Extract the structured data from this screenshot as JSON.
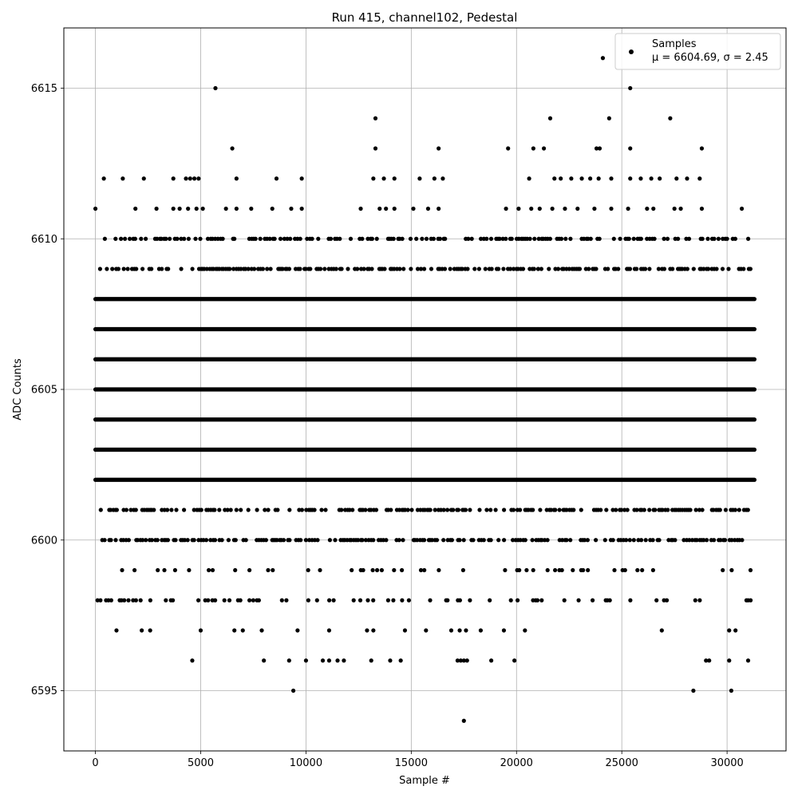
{
  "chart_data": {
    "type": "scatter",
    "title": "Run 415, channel102, Pedestal",
    "xlabel": "Sample #",
    "ylabel": "ADC Counts",
    "xlim": [
      -1500,
      32800
    ],
    "ylim": [
      6593,
      6617
    ],
    "xticks": [
      0,
      5000,
      10000,
      15000,
      20000,
      25000,
      30000
    ],
    "xtick_labels": [
      "0",
      "5000",
      "10000",
      "15000",
      "20000",
      "25000",
      "30000"
    ],
    "yticks": [
      6595,
      6600,
      6605,
      6610,
      6615
    ],
    "ytick_labels": [
      "6595",
      "6600",
      "6605",
      "6610",
      "6615"
    ],
    "grid": true,
    "legend_position": "top-right",
    "series": [
      {
        "name": "Samples",
        "legend_stats": "μ = 6604.69, σ = 2.45",
        "color": "#000000",
        "marker": "circle",
        "n_samples": 31300,
        "dense_bands": [
          {
            "y": 6608,
            "x_range": [
              0,
              31300
            ]
          },
          {
            "y": 6607,
            "x_range": [
              0,
              31300
            ]
          },
          {
            "y": 6606,
            "x_range": [
              0,
              31300
            ]
          },
          {
            "y": 6605,
            "x_range": [
              0,
              31300
            ]
          },
          {
            "y": 6604,
            "x_range": [
              0,
              31300
            ]
          },
          {
            "y": 6603,
            "x_range": [
              0,
              31300
            ]
          },
          {
            "y": 6602,
            "x_range": [
              0,
              31300
            ]
          }
        ],
        "sparse_bands": [
          {
            "y": 6610,
            "x_range": [
              100,
              31200
            ],
            "density": 0.55
          },
          {
            "y": 6609,
            "x_range": [
              100,
              31200
            ],
            "density": 0.6
          },
          {
            "y": 6601,
            "x_range": [
              100,
              31200
            ],
            "density": 0.6
          },
          {
            "y": 6600,
            "x_range": [
              100,
              31200
            ],
            "density": 0.6
          },
          {
            "y": 6599,
            "x_range": [
              100,
              31200
            ],
            "density": 0.2
          },
          {
            "y": 6598,
            "x_range": [
              100,
              31200
            ],
            "density": 0.2
          }
        ],
        "points": [
          {
            "x": 0,
            "y": 6611
          },
          {
            "x": 1900,
            "y": 6611
          },
          {
            "x": 2900,
            "y": 6611
          },
          {
            "x": 3700,
            "y": 6611
          },
          {
            "x": 4000,
            "y": 6611
          },
          {
            "x": 4400,
            "y": 6611
          },
          {
            "x": 4800,
            "y": 6611
          },
          {
            "x": 5100,
            "y": 6611
          },
          {
            "x": 6200,
            "y": 6611
          },
          {
            "x": 6700,
            "y": 6611
          },
          {
            "x": 7400,
            "y": 6611
          },
          {
            "x": 8400,
            "y": 6611
          },
          {
            "x": 9300,
            "y": 6611
          },
          {
            "x": 9800,
            "y": 6611
          },
          {
            "x": 12600,
            "y": 6611
          },
          {
            "x": 13500,
            "y": 6611
          },
          {
            "x": 13800,
            "y": 6611
          },
          {
            "x": 14200,
            "y": 6611
          },
          {
            "x": 15100,
            "y": 6611
          },
          {
            "x": 15800,
            "y": 6611
          },
          {
            "x": 16300,
            "y": 6611
          },
          {
            "x": 19500,
            "y": 6611
          },
          {
            "x": 20100,
            "y": 6611
          },
          {
            "x": 20700,
            "y": 6611
          },
          {
            "x": 21100,
            "y": 6611
          },
          {
            "x": 21700,
            "y": 6611
          },
          {
            "x": 22300,
            "y": 6611
          },
          {
            "x": 22900,
            "y": 6611
          },
          {
            "x": 23700,
            "y": 6611
          },
          {
            "x": 24500,
            "y": 6611
          },
          {
            "x": 25300,
            "y": 6611
          },
          {
            "x": 26200,
            "y": 6611
          },
          {
            "x": 26500,
            "y": 6611
          },
          {
            "x": 27500,
            "y": 6611
          },
          {
            "x": 27800,
            "y": 6611
          },
          {
            "x": 28800,
            "y": 6611
          },
          {
            "x": 30700,
            "y": 6611
          },
          {
            "x": 400,
            "y": 6612
          },
          {
            "x": 1300,
            "y": 6612
          },
          {
            "x": 2300,
            "y": 6612
          },
          {
            "x": 3700,
            "y": 6612
          },
          {
            "x": 4300,
            "y": 6612
          },
          {
            "x": 4500,
            "y": 6612
          },
          {
            "x": 4700,
            "y": 6612
          },
          {
            "x": 4900,
            "y": 6612
          },
          {
            "x": 6700,
            "y": 6612
          },
          {
            "x": 8600,
            "y": 6612
          },
          {
            "x": 9800,
            "y": 6612
          },
          {
            "x": 13200,
            "y": 6612
          },
          {
            "x": 13700,
            "y": 6612
          },
          {
            "x": 14200,
            "y": 6612
          },
          {
            "x": 15400,
            "y": 6612
          },
          {
            "x": 16100,
            "y": 6612
          },
          {
            "x": 16500,
            "y": 6612
          },
          {
            "x": 20600,
            "y": 6612
          },
          {
            "x": 21800,
            "y": 6612
          },
          {
            "x": 22100,
            "y": 6612
          },
          {
            "x": 22600,
            "y": 6612
          },
          {
            "x": 23100,
            "y": 6612
          },
          {
            "x": 23500,
            "y": 6612
          },
          {
            "x": 23900,
            "y": 6612
          },
          {
            "x": 24500,
            "y": 6612
          },
          {
            "x": 25400,
            "y": 6612
          },
          {
            "x": 25900,
            "y": 6612
          },
          {
            "x": 26400,
            "y": 6612
          },
          {
            "x": 26800,
            "y": 6612
          },
          {
            "x": 27600,
            "y": 6612
          },
          {
            "x": 28100,
            "y": 6612
          },
          {
            "x": 28700,
            "y": 6612
          },
          {
            "x": 6500,
            "y": 6613
          },
          {
            "x": 13300,
            "y": 6613
          },
          {
            "x": 16300,
            "y": 6613
          },
          {
            "x": 19600,
            "y": 6613
          },
          {
            "x": 20800,
            "y": 6613
          },
          {
            "x": 21300,
            "y": 6613
          },
          {
            "x": 23800,
            "y": 6613
          },
          {
            "x": 23950,
            "y": 6613
          },
          {
            "x": 25400,
            "y": 6613
          },
          {
            "x": 28800,
            "y": 6613
          },
          {
            "x": 13300,
            "y": 6614
          },
          {
            "x": 21600,
            "y": 6614
          },
          {
            "x": 24400,
            "y": 6614
          },
          {
            "x": 27300,
            "y": 6614
          },
          {
            "x": 5700,
            "y": 6615
          },
          {
            "x": 25400,
            "y": 6615
          },
          {
            "x": 24100,
            "y": 6616
          },
          {
            "x": 1000,
            "y": 6597
          },
          {
            "x": 2200,
            "y": 6597
          },
          {
            "x": 2600,
            "y": 6597
          },
          {
            "x": 5000,
            "y": 6597
          },
          {
            "x": 6600,
            "y": 6597
          },
          {
            "x": 7000,
            "y": 6597
          },
          {
            "x": 7900,
            "y": 6597
          },
          {
            "x": 9600,
            "y": 6597
          },
          {
            "x": 11100,
            "y": 6597
          },
          {
            "x": 12900,
            "y": 6597
          },
          {
            "x": 13200,
            "y": 6597
          },
          {
            "x": 14700,
            "y": 6597
          },
          {
            "x": 15700,
            "y": 6597
          },
          {
            "x": 16900,
            "y": 6597
          },
          {
            "x": 17300,
            "y": 6597
          },
          {
            "x": 17600,
            "y": 6597
          },
          {
            "x": 18300,
            "y": 6597
          },
          {
            "x": 19400,
            "y": 6597
          },
          {
            "x": 20400,
            "y": 6597
          },
          {
            "x": 26900,
            "y": 6597
          },
          {
            "x": 30100,
            "y": 6597
          },
          {
            "x": 30400,
            "y": 6597
          },
          {
            "x": 4600,
            "y": 6596
          },
          {
            "x": 8000,
            "y": 6596
          },
          {
            "x": 9200,
            "y": 6596
          },
          {
            "x": 10000,
            "y": 6596
          },
          {
            "x": 10800,
            "y": 6596
          },
          {
            "x": 11100,
            "y": 6596
          },
          {
            "x": 11500,
            "y": 6596
          },
          {
            "x": 11800,
            "y": 6596
          },
          {
            "x": 13100,
            "y": 6596
          },
          {
            "x": 14000,
            "y": 6596
          },
          {
            "x": 14500,
            "y": 6596
          },
          {
            "x": 17200,
            "y": 6596
          },
          {
            "x": 17350,
            "y": 6596
          },
          {
            "x": 17500,
            "y": 6596
          },
          {
            "x": 17650,
            "y": 6596
          },
          {
            "x": 18800,
            "y": 6596
          },
          {
            "x": 19900,
            "y": 6596
          },
          {
            "x": 29000,
            "y": 6596
          },
          {
            "x": 29150,
            "y": 6596
          },
          {
            "x": 30100,
            "y": 6596
          },
          {
            "x": 31000,
            "y": 6596
          },
          {
            "x": 9400,
            "y": 6595
          },
          {
            "x": 28400,
            "y": 6595
          },
          {
            "x": 30200,
            "y": 6595
          },
          {
            "x": 17500,
            "y": 6594
          }
        ]
      }
    ]
  }
}
